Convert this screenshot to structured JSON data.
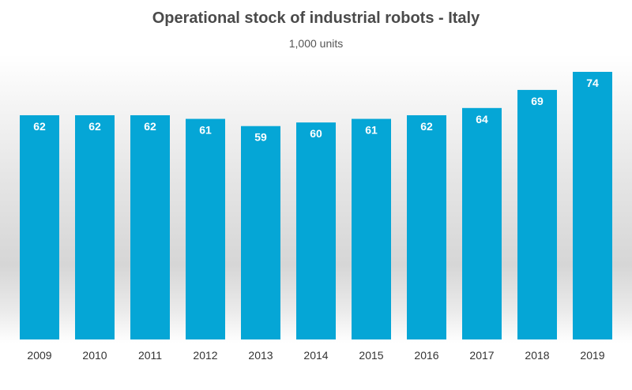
{
  "chart_data": {
    "type": "bar",
    "title": "Operational stock of industrial robots - Italy",
    "subtitle": "1,000 units",
    "xlabel": "",
    "ylabel": "",
    "categories": [
      "2009",
      "2010",
      "2011",
      "2012",
      "2013",
      "2014",
      "2015",
      "2016",
      "2017",
      "2018",
      "2019"
    ],
    "values": [
      62,
      62,
      62,
      61,
      59,
      60,
      61,
      62,
      64,
      69,
      74
    ],
    "data_labels": [
      "62",
      "62",
      "62",
      "61",
      "59",
      "60",
      "61",
      "62",
      "64",
      "69",
      "74"
    ],
    "ylim": [
      0,
      74
    ],
    "grid": false,
    "legend": "none",
    "colors": {
      "bar": "#05a6d6",
      "label": "#ffffff",
      "axis_text": "#333333"
    }
  }
}
